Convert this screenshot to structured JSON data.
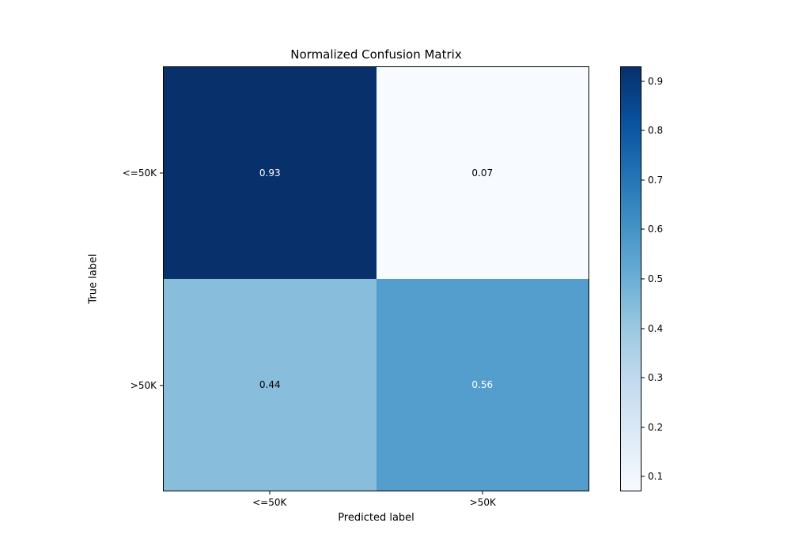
{
  "chart_data": {
    "type": "heatmap",
    "title": "Normalized Confusion Matrix",
    "xlabel": "Predicted label",
    "ylabel": "True label",
    "x_ticklabels": [
      "<=50K",
      ">50K"
    ],
    "y_ticklabels": [
      "<=50K",
      ">50K"
    ],
    "matrix": [
      [
        0.93,
        0.07
      ],
      [
        0.44,
        0.56
      ]
    ],
    "cell_labels": [
      [
        "0.93",
        "0.07"
      ],
      [
        "0.44",
        "0.56"
      ]
    ],
    "cell_colors": [
      [
        "#08306b",
        "#f7fbff"
      ],
      [
        "#88bedc",
        "#549ecd"
      ]
    ],
    "cell_text_colors": [
      [
        "#ffffff",
        "#000000"
      ],
      [
        "#000000",
        "#ffffff"
      ]
    ],
    "colormap": "Blues",
    "grid": false,
    "legend_position": "right-colorbar",
    "colorbar": {
      "vmin": 0.07,
      "vmax": 0.93,
      "ticks": [
        0.1,
        0.2,
        0.3,
        0.4,
        0.5,
        0.6,
        0.7,
        0.8,
        0.9
      ],
      "tick_labels": [
        "0.1",
        "0.2",
        "0.3",
        "0.4",
        "0.5",
        "0.6",
        "0.7",
        "0.8",
        "0.9"
      ],
      "gradient_bottom_to_top": [
        "#f7fbff",
        "#deebf7",
        "#c6dbef",
        "#9ecae1",
        "#6baed6",
        "#4292c6",
        "#2171b5",
        "#08519c",
        "#08306b"
      ]
    }
  }
}
